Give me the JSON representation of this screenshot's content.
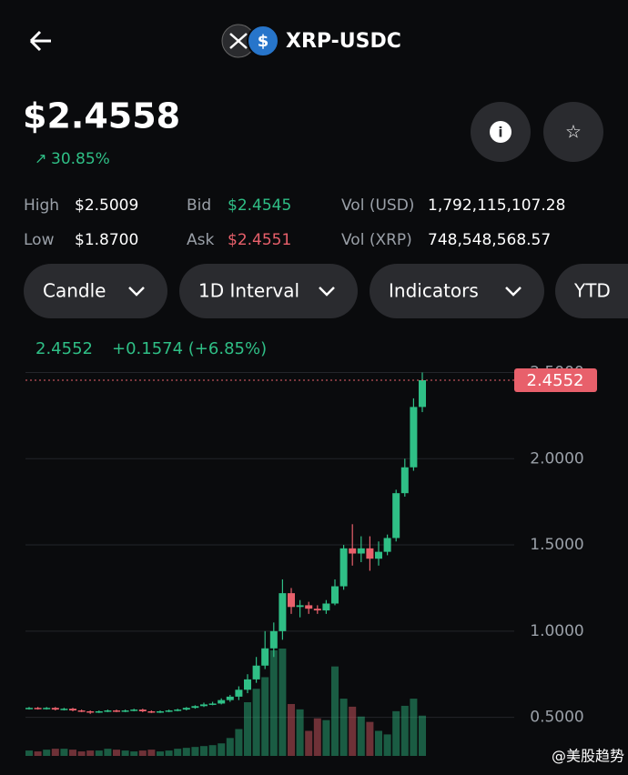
{
  "header": {
    "pair": "XRP-USDC",
    "price": "$2.4558",
    "change": "30.85%"
  },
  "stats": [
    {
      "label": "High",
      "value": "$2.5009"
    },
    {
      "label": "Low",
      "value": "$1.8700"
    },
    {
      "label": "Bid",
      "value": "$2.4545"
    },
    {
      "label": "Ask",
      "value": "$2.4551"
    },
    {
      "label": "Vol (USD)",
      "value": "1,792,115,107.28"
    },
    {
      "label": "Vol (XRP)",
      "value": "748,548,568.57"
    }
  ],
  "buttons": [
    "Candle",
    "1D Interval",
    "Indicators",
    "YTD"
  ],
  "watermark": "@美股趋势",
  "chart_data": {
    "type": "candlestick",
    "summary_price": "2.4552",
    "summary_change": "+0.1574 (+6.85%)",
    "last_price": 2.4552,
    "up_color": "#2fbf86",
    "down_color": "#e8606b",
    "grid": true,
    "ylim": [
      0.25,
      2.55
    ],
    "yticks": [
      {
        "value": 0.5,
        "label": "0.5000"
      },
      {
        "value": 1,
        "label": "1.0000"
      },
      {
        "value": 1.5,
        "label": "1.5000"
      },
      {
        "value": 2,
        "label": "2.0000"
      },
      {
        "value": 2.5,
        "label": "2.5000"
      }
    ],
    "open": [
      0.55,
      0.555,
      0.55,
      0.555,
      0.545,
      0.55,
      0.54,
      0.535,
      0.53,
      0.535,
      0.54,
      0.535,
      0.54,
      0.545,
      0.535,
      0.53,
      0.535,
      0.54,
      0.545,
      0.555,
      0.565,
      0.575,
      0.58,
      0.6,
      0.62,
      0.66,
      0.72,
      0.8,
      0.9,
      1.0,
      1.22,
      1.14,
      1.15,
      1.13,
      1.12,
      1.16,
      1.26,
      1.48,
      1.45,
      1.48,
      1.42,
      1.46,
      1.54,
      1.8,
      1.95,
      2.3
    ],
    "high": [
      0.56,
      0.56,
      0.56,
      0.56,
      0.555,
      0.555,
      0.545,
      0.54,
      0.54,
      0.545,
      0.545,
      0.545,
      0.55,
      0.55,
      0.54,
      0.54,
      0.545,
      0.55,
      0.56,
      0.57,
      0.585,
      0.59,
      0.61,
      0.63,
      0.68,
      0.75,
      0.85,
      1.0,
      1.05,
      1.3,
      1.25,
      1.18,
      1.17,
      1.15,
      1.18,
      1.3,
      1.5,
      1.62,
      1.55,
      1.55,
      1.52,
      1.56,
      1.82,
      2.0,
      2.35,
      2.5
    ],
    "low": [
      0.545,
      0.545,
      0.545,
      0.54,
      0.54,
      0.535,
      0.53,
      0.52,
      0.525,
      0.53,
      0.53,
      0.53,
      0.535,
      0.53,
      0.525,
      0.525,
      0.53,
      0.535,
      0.54,
      0.55,
      0.56,
      0.57,
      0.575,
      0.59,
      0.6,
      0.64,
      0.7,
      0.78,
      0.85,
      0.95,
      1.1,
      1.08,
      1.1,
      1.1,
      1.1,
      1.15,
      1.24,
      1.38,
      1.4,
      1.35,
      1.38,
      1.44,
      1.52,
      1.78,
      1.93,
      2.27
    ],
    "close": [
      0.555,
      0.55,
      0.555,
      0.545,
      0.55,
      0.54,
      0.535,
      0.53,
      0.535,
      0.54,
      0.535,
      0.54,
      0.545,
      0.535,
      0.53,
      0.535,
      0.54,
      0.545,
      0.555,
      0.565,
      0.575,
      0.58,
      0.6,
      0.62,
      0.66,
      0.72,
      0.8,
      0.9,
      1.0,
      1.22,
      1.14,
      1.15,
      1.13,
      1.12,
      1.16,
      1.26,
      1.48,
      1.45,
      1.48,
      1.42,
      1.46,
      1.54,
      1.8,
      1.95,
      2.3,
      2.4552
    ],
    "volume": [
      6,
      5,
      7,
      8,
      8,
      7,
      5,
      6,
      6,
      8,
      7,
      6,
      5,
      6,
      7,
      5,
      6,
      8,
      9,
      10,
      11,
      12,
      14,
      20,
      30,
      60,
      75,
      88,
      118,
      120,
      58,
      52,
      28,
      42,
      40,
      100,
      64,
      55,
      44,
      38,
      28,
      24,
      50,
      56,
      64,
      45
    ]
  }
}
